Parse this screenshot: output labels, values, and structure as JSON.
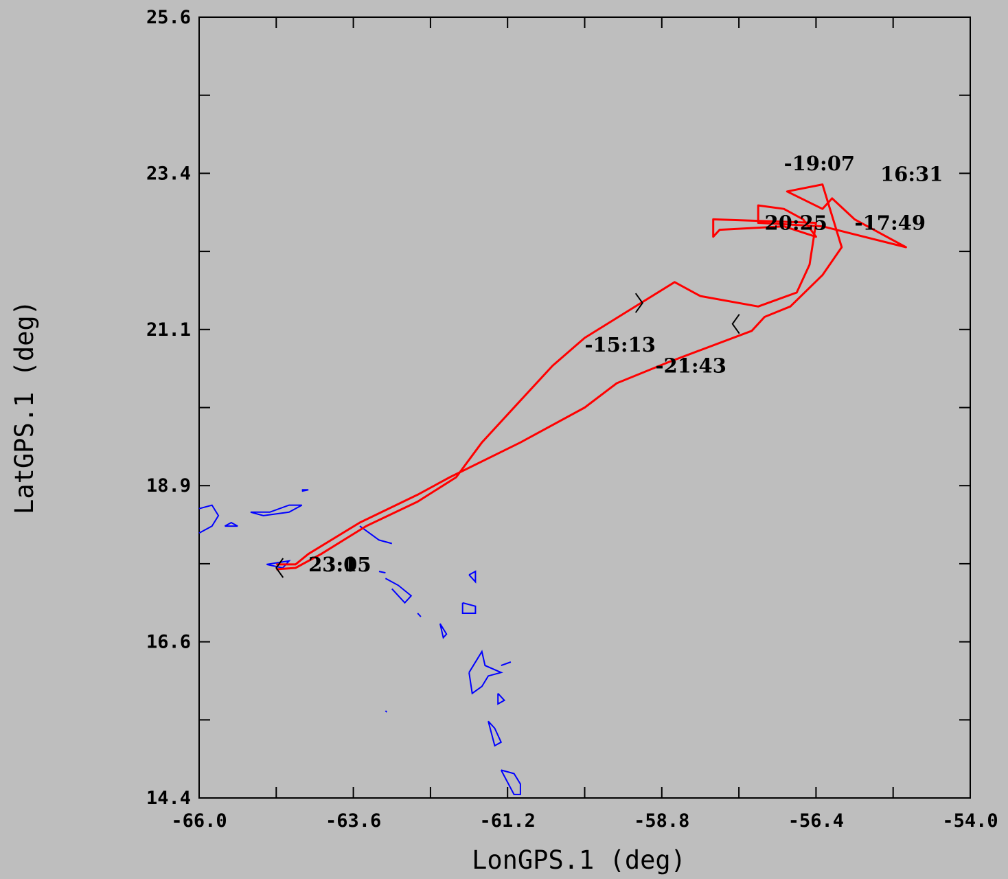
{
  "chart_data": {
    "type": "line",
    "title": "",
    "xlabel": "LonGPS.1 (deg)",
    "ylabel": "LatGPS.1 (deg)",
    "xlim": [
      -66.0,
      -54.0
    ],
    "ylim": [
      14.4,
      25.6
    ],
    "x_tick_labels": [
      "-66.0",
      "-63.6",
      "-61.2",
      "-58.8",
      "-56.4",
      "-54.0"
    ],
    "y_tick_labels": [
      "25.6",
      "23.4",
      "21.1",
      "18.9",
      "16.6",
      "14.4"
    ],
    "grid": false,
    "legend": "none",
    "colors": {
      "track": "#ff0000",
      "coastline": "#0000ff",
      "annotation": "#000000",
      "background": "#bebebe"
    },
    "series": [
      {
        "values_xy": [
          [
            -64.8,
            17.75
          ],
          [
            -64.5,
            17.75
          ],
          [
            -64.3,
            17.9
          ],
          [
            -63.5,
            18.35
          ],
          [
            -62.6,
            18.75
          ],
          [
            -62.1,
            19.0
          ],
          [
            -61.0,
            19.5
          ],
          [
            -60.0,
            20.0
          ],
          [
            -59.5,
            20.35
          ],
          [
            -58.7,
            20.65
          ],
          [
            -57.4,
            21.1
          ],
          [
            -57.2,
            21.3
          ],
          [
            -56.8,
            21.45
          ],
          [
            -56.3,
            21.9
          ],
          [
            -56.0,
            22.3
          ],
          [
            -56.3,
            23.2
          ],
          [
            -56.85,
            23.1
          ],
          [
            -56.3,
            22.85
          ],
          [
            -56.15,
            23.0
          ],
          [
            -55.8,
            22.7
          ],
          [
            -55.0,
            22.3
          ],
          [
            -56.3,
            22.6
          ],
          [
            -57.3,
            22.65
          ],
          [
            -57.3,
            22.9
          ],
          [
            -56.9,
            22.85
          ],
          [
            -56.6,
            22.7
          ],
          [
            -56.4,
            22.45
          ],
          [
            -56.9,
            22.6
          ],
          [
            -57.9,
            22.55
          ],
          [
            -58.0,
            22.45
          ],
          [
            -58.0,
            22.7
          ],
          [
            -56.4,
            22.65
          ],
          [
            -56.5,
            22.05
          ],
          [
            -56.7,
            21.65
          ],
          [
            -57.3,
            21.45
          ],
          [
            -58.2,
            21.6
          ],
          [
            -58.6,
            21.8
          ],
          [
            -59.3,
            21.4
          ],
          [
            -60.0,
            21.0
          ],
          [
            -60.5,
            20.6
          ],
          [
            -61.0,
            20.1
          ],
          [
            -61.6,
            19.5
          ],
          [
            -62.0,
            19.0
          ],
          [
            -62.6,
            18.65
          ],
          [
            -63.4,
            18.3
          ],
          [
            -64.1,
            17.9
          ],
          [
            -64.5,
            17.7
          ],
          [
            -64.8,
            17.68
          ]
        ]
      }
    ],
    "annotations": [
      {
        "text": "-15:13",
        "x": -60.0,
        "y": 20.9
      },
      {
        "text": "-21:43",
        "x": -58.9,
        "y": 20.6
      },
      {
        "text": "-19:07",
        "x": -56.9,
        "y": 23.5
      },
      {
        "text": "16:31",
        "x": -55.4,
        "y": 23.35
      },
      {
        "text": "-17:49",
        "x": -55.8,
        "y": 22.65
      },
      {
        "text": "20:25",
        "x": -57.2,
        "y": 22.65
      },
      {
        "text": "23:05",
        "x": -64.3,
        "y": 17.75
      },
      {
        "text": "23:15",
        "x": -64.3,
        "y": 17.75
      }
    ],
    "direction_markers": [
      {
        "x": -59.1,
        "y": 21.5,
        "direction": "right"
      },
      {
        "x": -57.7,
        "y": 21.2,
        "direction": "left"
      },
      {
        "x": -64.8,
        "y": 17.7,
        "direction": "left"
      }
    ],
    "coastline": [
      [
        [
          -66.0,
          18.55
        ],
        [
          -65.8,
          18.6
        ],
        [
          -65.7,
          18.45
        ],
        [
          -65.8,
          18.3
        ],
        [
          -66.0,
          18.2
        ]
      ],
      [
        [
          -65.6,
          18.3
        ],
        [
          -65.4,
          18.3
        ],
        [
          -65.5,
          18.35
        ],
        [
          -65.6,
          18.3
        ]
      ],
      [
        [
          -65.2,
          18.5
        ],
        [
          -64.9,
          18.5
        ],
        [
          -64.6,
          18.6
        ],
        [
          -64.4,
          18.6
        ],
        [
          -64.6,
          18.5
        ],
        [
          -65.0,
          18.45
        ],
        [
          -65.2,
          18.5
        ]
      ],
      [
        [
          -64.4,
          18.82
        ],
        [
          -64.3,
          18.82
        ],
        [
          -64.4,
          18.8
        ]
      ],
      [
        [
          -64.95,
          17.75
        ],
        [
          -64.6,
          17.8
        ],
        [
          -64.7,
          17.7
        ],
        [
          -64.95,
          17.75
        ]
      ],
      [
        [
          -63.5,
          18.3
        ],
        [
          -63.2,
          18.1
        ],
        [
          -63.0,
          18.05
        ]
      ],
      [
        [
          -63.2,
          17.65
        ],
        [
          -63.1,
          17.63
        ]
      ],
      [
        [
          -63.1,
          17.55
        ],
        [
          -62.9,
          17.45
        ],
        [
          -62.7,
          17.3
        ],
        [
          -62.8,
          17.2
        ],
        [
          -63.0,
          17.4
        ]
      ],
      [
        [
          -62.6,
          17.05
        ],
        [
          -62.55,
          17.0
        ]
      ],
      [
        [
          -62.25,
          16.9
        ],
        [
          -62.15,
          16.75
        ],
        [
          -62.2,
          16.7
        ],
        [
          -62.25,
          16.9
        ]
      ],
      [
        [
          -61.8,
          17.6
        ],
        [
          -61.7,
          17.65
        ],
        [
          -61.7,
          17.5
        ],
        [
          -61.8,
          17.6
        ]
      ],
      [
        [
          -61.9,
          17.2
        ],
        [
          -61.7,
          17.15
        ],
        [
          -61.7,
          17.05
        ],
        [
          -61.9,
          17.05
        ],
        [
          -61.9,
          17.2
        ]
      ],
      [
        [
          -61.8,
          16.2
        ],
        [
          -61.6,
          16.5
        ],
        [
          -61.55,
          16.3
        ],
        [
          -61.3,
          16.2
        ],
        [
          -61.5,
          16.15
        ],
        [
          -61.6,
          16.0
        ],
        [
          -61.75,
          15.9
        ],
        [
          -61.8,
          16.2
        ]
      ],
      [
        [
          -61.3,
          16.3
        ],
        [
          -61.15,
          16.35
        ]
      ],
      [
        [
          -61.35,
          15.9
        ],
        [
          -61.25,
          15.8
        ],
        [
          -61.35,
          15.75
        ],
        [
          -61.35,
          15.9
        ]
      ],
      [
        [
          -63.1,
          15.65
        ],
        [
          -63.08,
          15.63
        ]
      ],
      [
        [
          -61.5,
          15.5
        ],
        [
          -61.4,
          15.4
        ],
        [
          -61.3,
          15.2
        ],
        [
          -61.4,
          15.15
        ],
        [
          -61.5,
          15.5
        ]
      ],
      [
        [
          -61.3,
          14.8
        ],
        [
          -61.1,
          14.75
        ],
        [
          -61.0,
          14.6
        ],
        [
          -61.0,
          14.45
        ],
        [
          -61.1,
          14.45
        ],
        [
          -61.3,
          14.8
        ]
      ]
    ]
  }
}
